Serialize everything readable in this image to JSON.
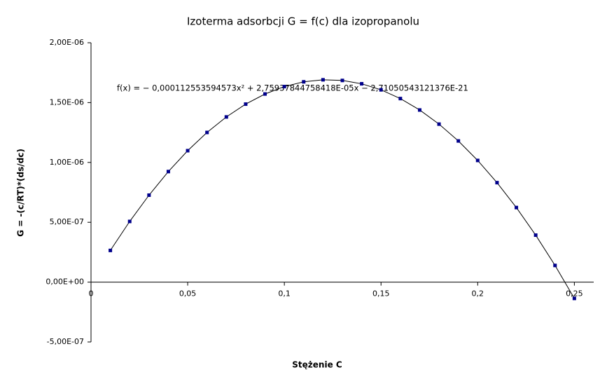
{
  "chart_data": {
    "type": "scatter",
    "title": "Izoterma adsorbcji G = f(c) dla izopropanolu",
    "x_label": "Stężenie C",
    "y_label": "G = -(c/RT)*(ds/dc)",
    "annotation": "f(x) = − 0,000112553594573x² + 2,75937844758418E-05x − 2,71050543121376E-21",
    "series": [
      {
        "color": "#00008b",
        "line": true,
        "x": [
          0.01,
          0.02,
          0.03,
          0.04,
          0.05,
          0.06,
          0.07,
          0.08,
          0.09,
          0.1,
          0.11,
          0.12,
          0.13,
          0.14,
          0.15,
          0.16,
          0.17,
          0.18,
          0.19,
          0.2,
          0.21,
          0.22,
          0.23,
          0.24,
          0.25
        ],
        "values": [
          2.647e-07,
          5.069e-07,
          7.265e-07,
          9.237e-07,
          1.0983e-06,
          1.2504e-06,
          1.3801e-06,
          1.4872e-06,
          1.5718e-06,
          1.6338e-06,
          1.6734e-06,
          1.6905e-06,
          1.685e-06,
          1.6571e-06,
          1.6066e-06,
          1.5336e-06,
          1.4381e-06,
          1.3201e-06,
          1.1796e-06,
          1.0166e-06,
          8.311e-07,
          6.23e-07,
          3.925e-07,
          1.394e-07,
          -1.362e-07
        ]
      }
    ],
    "xlim": [
      0,
      0.26
    ],
    "xticks": [
      0,
      {
        "value": 0.05,
        "label": "0,05"
      },
      {
        "value": 0.1,
        "label": "0,1"
      },
      {
        "value": 0.15,
        "label": "0,15"
      },
      {
        "value": 0.2,
        "label": "0,2"
      },
      {
        "value": 0.25,
        "label": "0,25"
      }
    ],
    "ylim": [
      -5e-07,
      2e-06
    ],
    "yticks": [
      {
        "value": -5e-07,
        "label": "-5,00E-07"
      },
      {
        "value": 0,
        "label": "0,00E+00"
      },
      {
        "value": 5e-07,
        "label": "5,00E-07"
      },
      {
        "value": 1e-06,
        "label": "1,00E-06"
      },
      {
        "value": 1.5e-06,
        "label": "1,50E-06"
      },
      {
        "value": 2e-06,
        "label": "2,00E-06"
      }
    ],
    "grid": false
  }
}
